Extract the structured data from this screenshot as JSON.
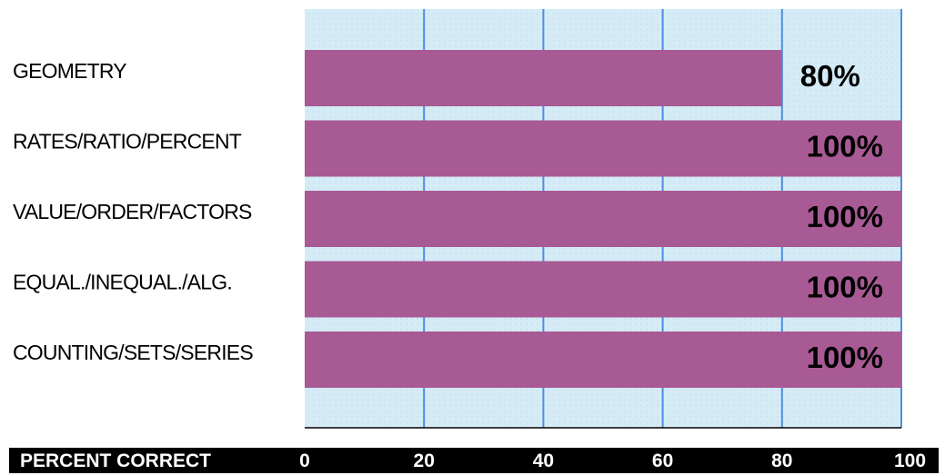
{
  "chart_data": {
    "type": "bar",
    "orientation": "horizontal",
    "categories": [
      "GEOMETRY",
      "RATES/RATIO/PERCENT",
      "VALUE/ORDER/FACTORS",
      "EQUAL./INEQUAL./ALG.",
      "COUNTING/SETS/SERIES"
    ],
    "values": [
      80,
      100,
      100,
      100,
      100
    ],
    "data_labels": [
      "80%",
      "100%",
      "100%",
      "100%",
      "100%"
    ],
    "xlabel": "PERCENT CORRECT",
    "xlim": [
      0,
      100
    ],
    "x_ticks": [
      0,
      20,
      40,
      60,
      80,
      100
    ],
    "x_tick_labels": [
      "0",
      "20",
      "40",
      "60",
      "80",
      "100"
    ],
    "grid": true,
    "legend": "none"
  },
  "colors": {
    "bar": "#a85a95",
    "plot_background": "#d5ecf7",
    "gridline": "#4f8de0",
    "axis_band": "#000000",
    "axis_text": "#ffffff"
  }
}
